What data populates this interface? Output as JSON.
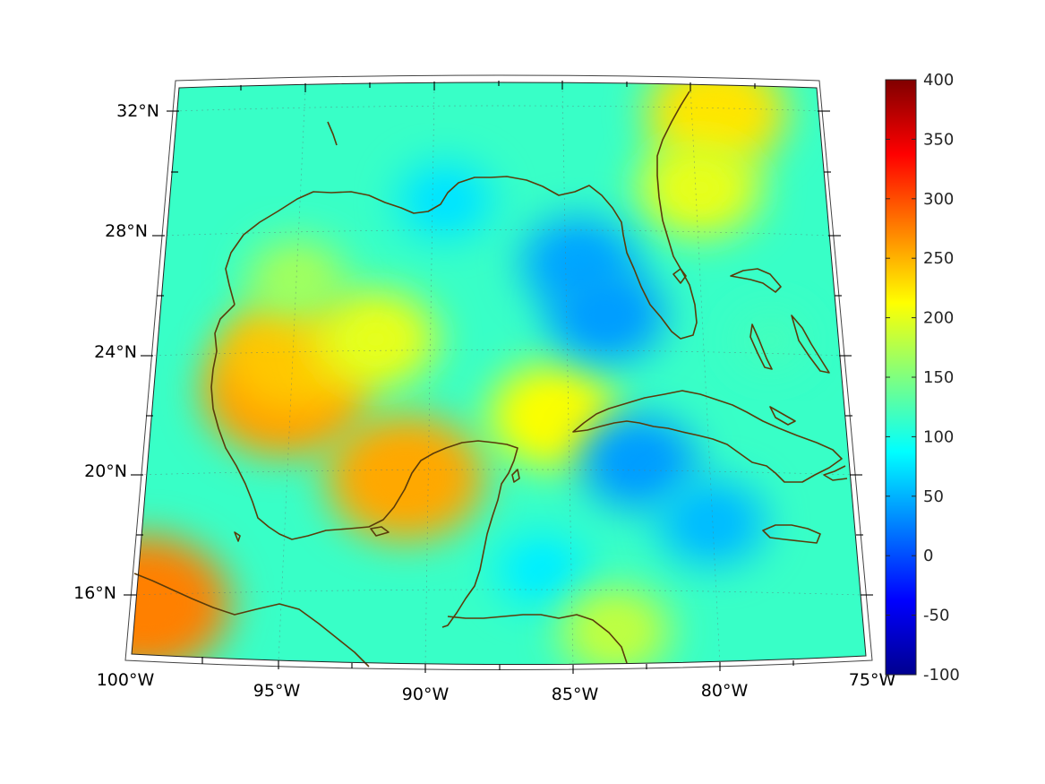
{
  "chart_data": {
    "type": "heatmap",
    "title": "",
    "xlabel": "",
    "ylabel": "",
    "map": {
      "projection": "conic (lambert)",
      "lon_range": [
        -100,
        -75
      ],
      "lat_range": [
        14,
        33
      ],
      "coastline_color": "#5a3b0a",
      "grid": "dotted"
    },
    "longitude_ticks": [
      {
        "value": -100,
        "label": "100°W"
      },
      {
        "value": -95,
        "label": "95°W"
      },
      {
        "value": -90,
        "label": "90°W"
      },
      {
        "value": -85,
        "label": "85°W"
      },
      {
        "value": -80,
        "label": "80°W"
      },
      {
        "value": -75,
        "label": "75°W"
      }
    ],
    "latitude_ticks": [
      {
        "value": 32,
        "label": "32°N"
      },
      {
        "value": 28,
        "label": "28°N"
      },
      {
        "value": 24,
        "label": "24°N"
      },
      {
        "value": 20,
        "label": "20°N"
      },
      {
        "value": 16,
        "label": "16°N"
      }
    ],
    "colorbar": {
      "colormap": "jet",
      "range": [
        -100,
        400
      ],
      "ticks": [
        400,
        350,
        300,
        250,
        200,
        150,
        100,
        50,
        0,
        -50,
        -100
      ],
      "tick_labels": [
        "400",
        "350",
        "300",
        "250",
        "200",
        "150",
        "100",
        "50",
        "0",
        "-50",
        "-100"
      ]
    },
    "background_value": 115,
    "features": [
      {
        "region": "western Gulf, off Tamaulipas/Veracruz",
        "lon": -95.3,
        "lat": 22.8,
        "value": 260
      },
      {
        "region": "western Gulf",
        "lon": -94.9,
        "lat": 24.0,
        "value": 240
      },
      {
        "region": "Bay of Campeche",
        "lon": -90.8,
        "lat": 20.0,
        "value": 255
      },
      {
        "region": "Pacific off Guatemala",
        "lon": -99.7,
        "lat": 15.7,
        "value": 275
      },
      {
        "region": "central Gulf",
        "lon": -92.0,
        "lat": 24.5,
        "value": 200
      },
      {
        "region": "northwest Gulf",
        "lon": -95.0,
        "lat": 26.5,
        "value": 165
      },
      {
        "region": "Yucatan Channel",
        "lon": -85.5,
        "lat": 22.0,
        "value": 210
      },
      {
        "region": "Georgia/South Carolina coast",
        "lon": -79.0,
        "lat": 32.0,
        "value": 225
      },
      {
        "region": "north Florida Atlantic coast",
        "lon": -79.8,
        "lat": 29.5,
        "value": 200
      },
      {
        "region": "eastern Gulf west of Florida",
        "lon": -84.5,
        "lat": 27.0,
        "value": 45
      },
      {
        "region": "southeastern Gulf",
        "lon": -83.5,
        "lat": 25.3,
        "value": 40
      },
      {
        "region": "Caribbean south of Cuba",
        "lon": -82.5,
        "lat": 20.5,
        "value": 40
      },
      {
        "region": "Caribbean north of Jamaica",
        "lon": -80.0,
        "lat": 18.5,
        "value": 55
      },
      {
        "region": "northern Gulf off Mississippi",
        "lon": -89.5,
        "lat": 29.0,
        "value": 75
      },
      {
        "region": "Gulf of Honduras",
        "lon": -86.0,
        "lat": 17.0,
        "value": 80
      },
      {
        "region": "Nicaragua Caribbean coast",
        "lon": -83.5,
        "lat": 15.0,
        "value": 180
      },
      {
        "region": "Bahamas",
        "lon": -77.5,
        "lat": 24.5,
        "value": 120
      }
    ]
  }
}
